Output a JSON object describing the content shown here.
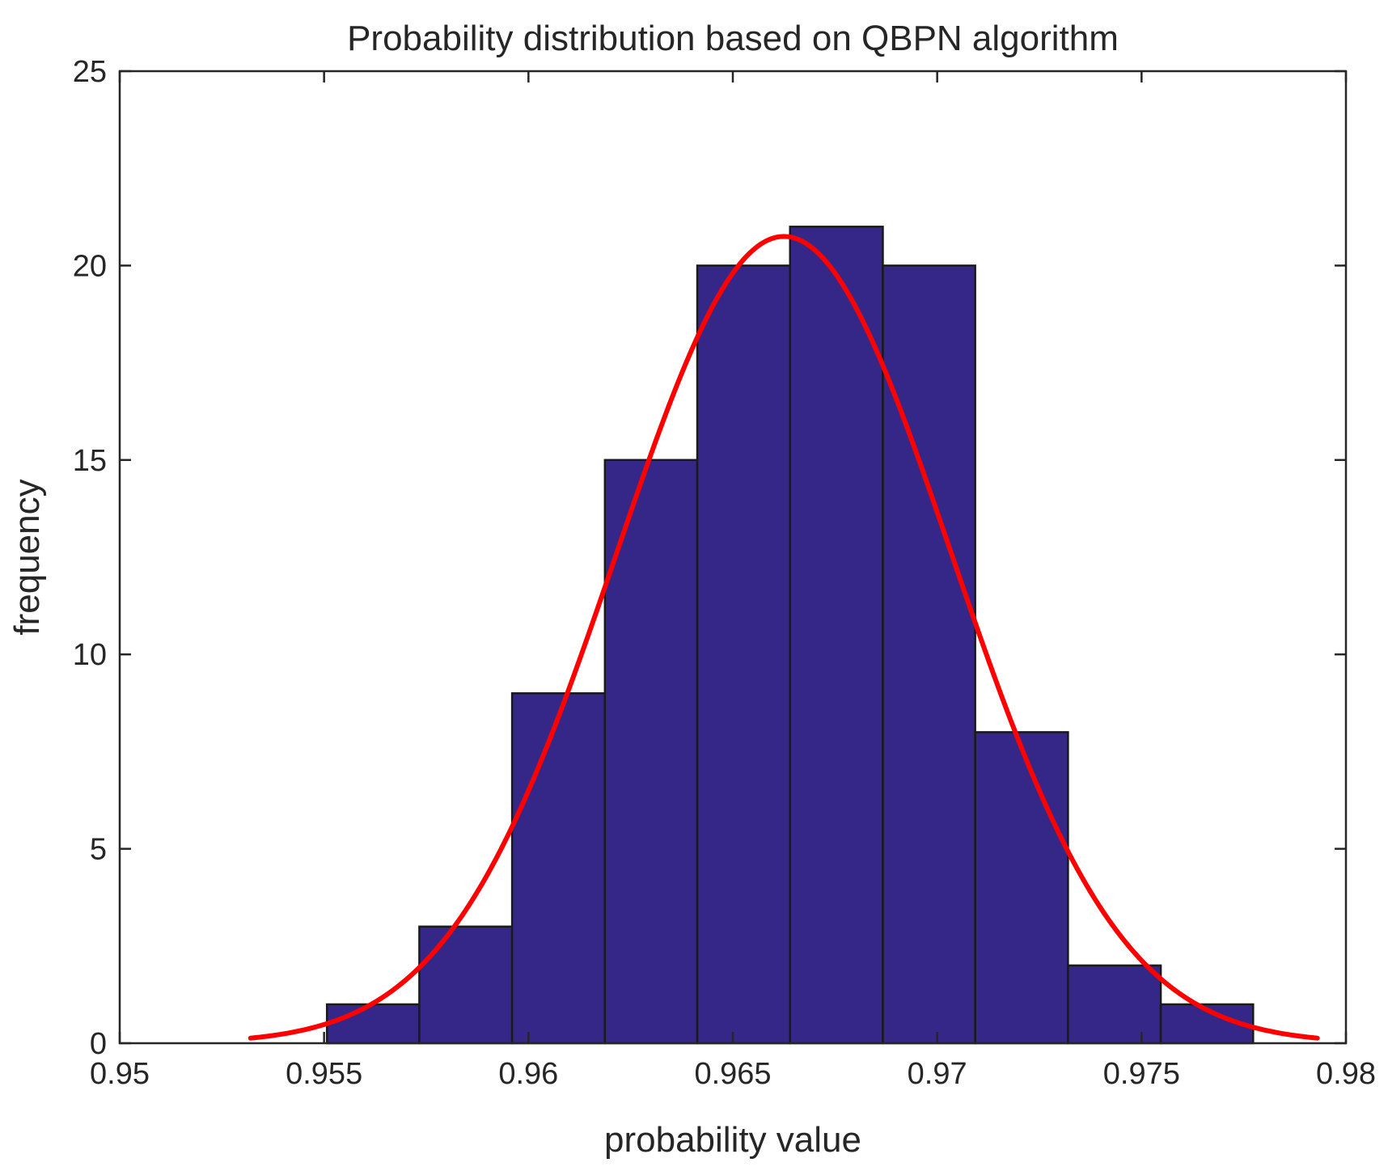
{
  "chart_data": {
    "type": "bar",
    "subtype": "histogram",
    "title": "Probability distribution based on QBPN algorithm",
    "xlabel": "probability value",
    "ylabel": "frequency",
    "xlim": [
      0.95,
      0.98
    ],
    "ylim": [
      0,
      25
    ],
    "xticks": [
      "0.95",
      "0.955",
      "0.96",
      "0.965",
      "0.97",
      "0.975",
      "0.98"
    ],
    "yticks": [
      "0",
      "5",
      "10",
      "15",
      "20",
      "25"
    ],
    "grid": false,
    "bins": [
      {
        "x0": 0.95507,
        "x1": 0.95733,
        "count": 1
      },
      {
        "x0": 0.95733,
        "x1": 0.9596,
        "count": 3
      },
      {
        "x0": 0.9596,
        "x1": 0.96187,
        "count": 9
      },
      {
        "x0": 0.96187,
        "x1": 0.96413,
        "count": 15
      },
      {
        "x0": 0.96413,
        "x1": 0.9664,
        "count": 20
      },
      {
        "x0": 0.9664,
        "x1": 0.96867,
        "count": 21
      },
      {
        "x0": 0.96867,
        "x1": 0.97093,
        "count": 20
      },
      {
        "x0": 0.97093,
        "x1": 0.9732,
        "count": 8
      },
      {
        "x0": 0.9732,
        "x1": 0.97547,
        "count": 2
      },
      {
        "x0": 0.97547,
        "x1": 0.97773,
        "count": 1
      }
    ],
    "fit_curve": {
      "type": "normal",
      "mean": 0.96625,
      "sigma": 0.0041,
      "peak": 20.75,
      "x_range": [
        0.9532,
        0.9793
      ]
    },
    "colors": {
      "bar_fill": "#352788",
      "curve": "#ff0000"
    }
  }
}
